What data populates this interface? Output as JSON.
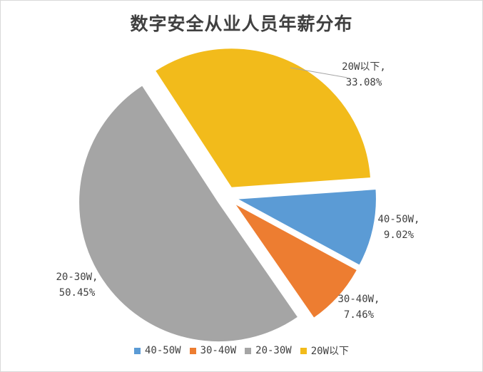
{
  "chart_data": {
    "type": "pie",
    "title": "数字安全从业人员年薪分布",
    "slices": [
      {
        "name": "40-50W",
        "value": 9.02,
        "label_line1": "40-50W,",
        "label_line2": "9.02%",
        "color": "#5b9bd5"
      },
      {
        "name": "30-40W",
        "value": 7.46,
        "label_line1": "30-40W,",
        "label_line2": "7.46%",
        "color": "#ed7d31"
      },
      {
        "name": "20-30W",
        "value": 50.45,
        "label_line1": "20-30W,",
        "label_line2": "50.45%",
        "color": "#a5a5a5"
      },
      {
        "name": "20W以下",
        "value": 33.08,
        "label_line1": "20W以下,",
        "label_line2": "33.08%",
        "color": "#f2bb1b"
      }
    ],
    "legend_position": "bottom",
    "exploded": true
  }
}
